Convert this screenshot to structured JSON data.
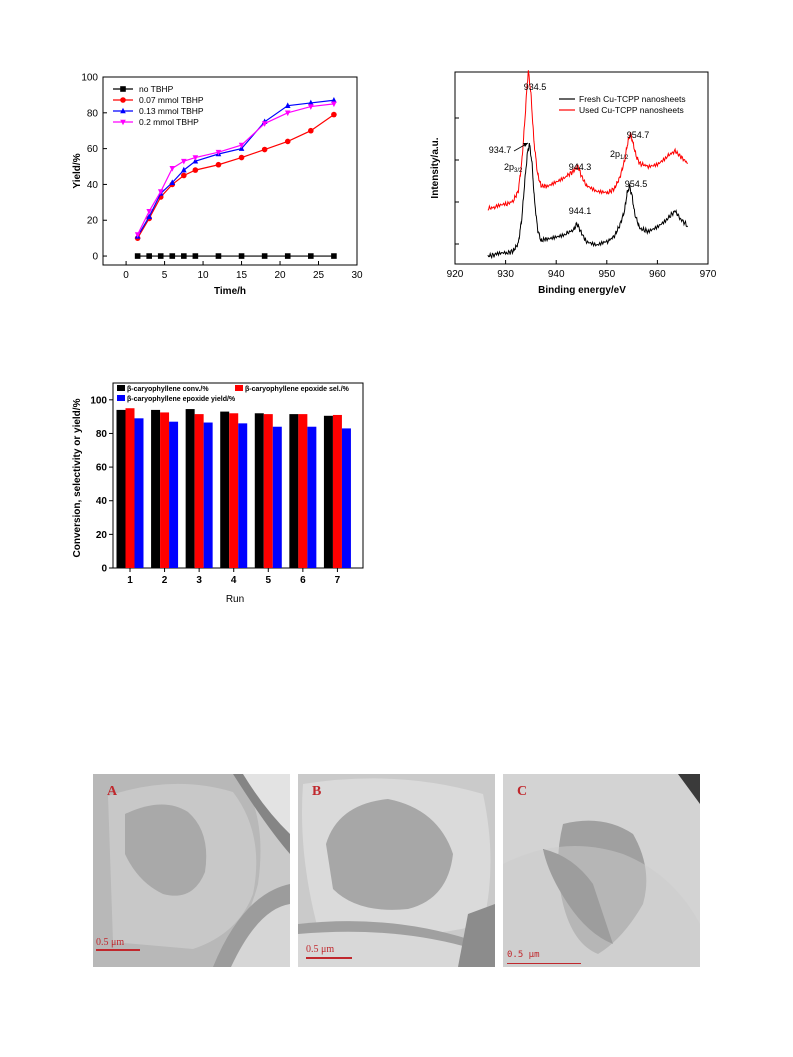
{
  "charts": [
    {
      "type": "line",
      "xlabel": "Time/h",
      "ylabel": "Yield/%",
      "xlim": [
        -3,
        30
      ],
      "ylim": [
        -5,
        100
      ],
      "xticks": [
        0,
        5,
        10,
        15,
        20,
        25,
        30
      ],
      "yticks": [
        0,
        20,
        40,
        60,
        80,
        100
      ],
      "legend_position": "top-left",
      "series": [
        {
          "name": "no TBHP",
          "color": "#000000",
          "marker": "square",
          "x": [
            1.5,
            3,
            4.5,
            6,
            7.5,
            9,
            12,
            15,
            18,
            21,
            24,
            27
          ],
          "y": [
            0,
            0,
            0,
            0,
            0,
            0,
            0,
            0,
            0,
            0,
            0,
            0
          ]
        },
        {
          "name": "0.07 mmol TBHP",
          "color": "#ff0000",
          "marker": "circle",
          "x": [
            1.5,
            3,
            4.5,
            6,
            7.5,
            9,
            12,
            15,
            18,
            21,
            24,
            27
          ],
          "y": [
            10,
            21,
            33,
            40,
            45,
            48,
            51,
            55,
            59.5,
            64,
            70,
            79
          ]
        },
        {
          "name": "0.13 mmol TBHP",
          "color": "#0000ff",
          "marker": "triangle",
          "x": [
            1.5,
            3,
            4.5,
            6,
            7.5,
            9,
            12,
            15,
            18,
            21,
            24,
            27
          ],
          "y": [
            11,
            22,
            35,
            41,
            48,
            53,
            57,
            60,
            75,
            84,
            85.5,
            87
          ]
        },
        {
          "name": "0.2 mmol TBHP",
          "color": "#ff00ff",
          "marker": "triangle-down",
          "x": [
            1.5,
            3,
            4.5,
            6,
            7.5,
            9,
            12,
            15,
            18,
            21,
            24,
            27
          ],
          "y": [
            12,
            25,
            36,
            49,
            53,
            55,
            58,
            62,
            74,
            80,
            83.5,
            85
          ]
        }
      ]
    },
    {
      "type": "line",
      "xlabel": "Binding energy/eV",
      "ylabel": "Intensity/a.u.",
      "xlim": [
        920,
        970
      ],
      "xticks": [
        920,
        930,
        940,
        950,
        960,
        970
      ],
      "legend_position": "top-right",
      "series": [
        {
          "name": "Fresh Cu-TCPP nanosheets",
          "color": "#000000",
          "x": [
            926.5,
            928,
            930,
            931.5,
            932.5,
            933.2,
            933.8,
            934.3,
            934.7,
            935.2,
            935.7,
            936.3,
            937,
            938,
            940,
            942,
            943.5,
            944.1,
            944.8,
            946,
            948,
            950,
            951.5,
            952.5,
            953.5,
            954.0,
            954.5,
            955.0,
            955.5,
            956.5,
            958,
            960,
            962,
            963.5,
            964.5,
            966
          ],
          "y": [
            0,
            1,
            2,
            4,
            10,
            30,
            60,
            82,
            90,
            75,
            45,
            22,
            12,
            14,
            16,
            18,
            21,
            26,
            20,
            11,
            8,
            11,
            16,
            24,
            36,
            50,
            56,
            48,
            34,
            22,
            20,
            24,
            30,
            36,
            30,
            24
          ]
        },
        {
          "name": "Used Cu-TCPP nanosheets",
          "color": "#ff0000",
          "x": [
            926.5,
            928,
            930,
            931.5,
            932.5,
            933.2,
            933.8,
            934.3,
            934.5,
            935.0,
            935.6,
            936.3,
            937,
            938,
            940,
            942,
            943.5,
            944.3,
            945,
            946,
            948,
            950,
            951.5,
            952.5,
            953.5,
            954.2,
            954.7,
            955.2,
            955.8,
            956.5,
            958,
            960,
            962,
            963.5,
            964.5,
            966
          ],
          "y": [
            38,
            39,
            41,
            44,
            52,
            75,
            108,
            140,
            148,
            130,
            92,
            66,
            56,
            56,
            60,
            64,
            68,
            72,
            64,
            56,
            51,
            50,
            54,
            62,
            76,
            92,
            98,
            90,
            80,
            74,
            72,
            74,
            80,
            84,
            80,
            74
          ]
        }
      ],
      "annotations": [
        "934.5",
        "934.7",
        "944.3",
        "944.1",
        "954.7",
        "954.5"
      ],
      "peak_labels": {
        "p32_main": "2p",
        "p32_sub": "3/2",
        "p12_main": "2p",
        "p12_sub": "1/2"
      }
    },
    {
      "type": "bar",
      "xlabel": "Run",
      "ylabel": "Conversion, selectivity or yield/%",
      "ylim": [
        0,
        110
      ],
      "yticks": [
        0,
        20,
        40,
        60,
        80,
        100
      ],
      "categories": [
        "1",
        "2",
        "3",
        "4",
        "5",
        "6",
        "7"
      ],
      "legend_position": "top",
      "series": [
        {
          "name": "β-caryophyllene conv./%",
          "color": "#000000",
          "values": [
            94,
            94,
            94.5,
            93,
            92,
            91.5,
            90.5
          ]
        },
        {
          "name": "β-caryophyllene epoxide sel./%",
          "color": "#ff0000",
          "values": [
            95,
            92.5,
            91.5,
            92,
            91.5,
            91.5,
            91
          ]
        },
        {
          "name": "β-caryophyllene epoxide yield/%",
          "color": "#0000ff",
          "values": [
            89,
            87,
            86.5,
            86,
            84,
            84,
            83
          ]
        }
      ]
    }
  ],
  "micrographs": [
    {
      "letter": "A",
      "scale": "0.5 μm"
    },
    {
      "letter": "B",
      "scale": "0.5 μm"
    },
    {
      "letter": "C",
      "scale": "0.5 μm"
    }
  ]
}
